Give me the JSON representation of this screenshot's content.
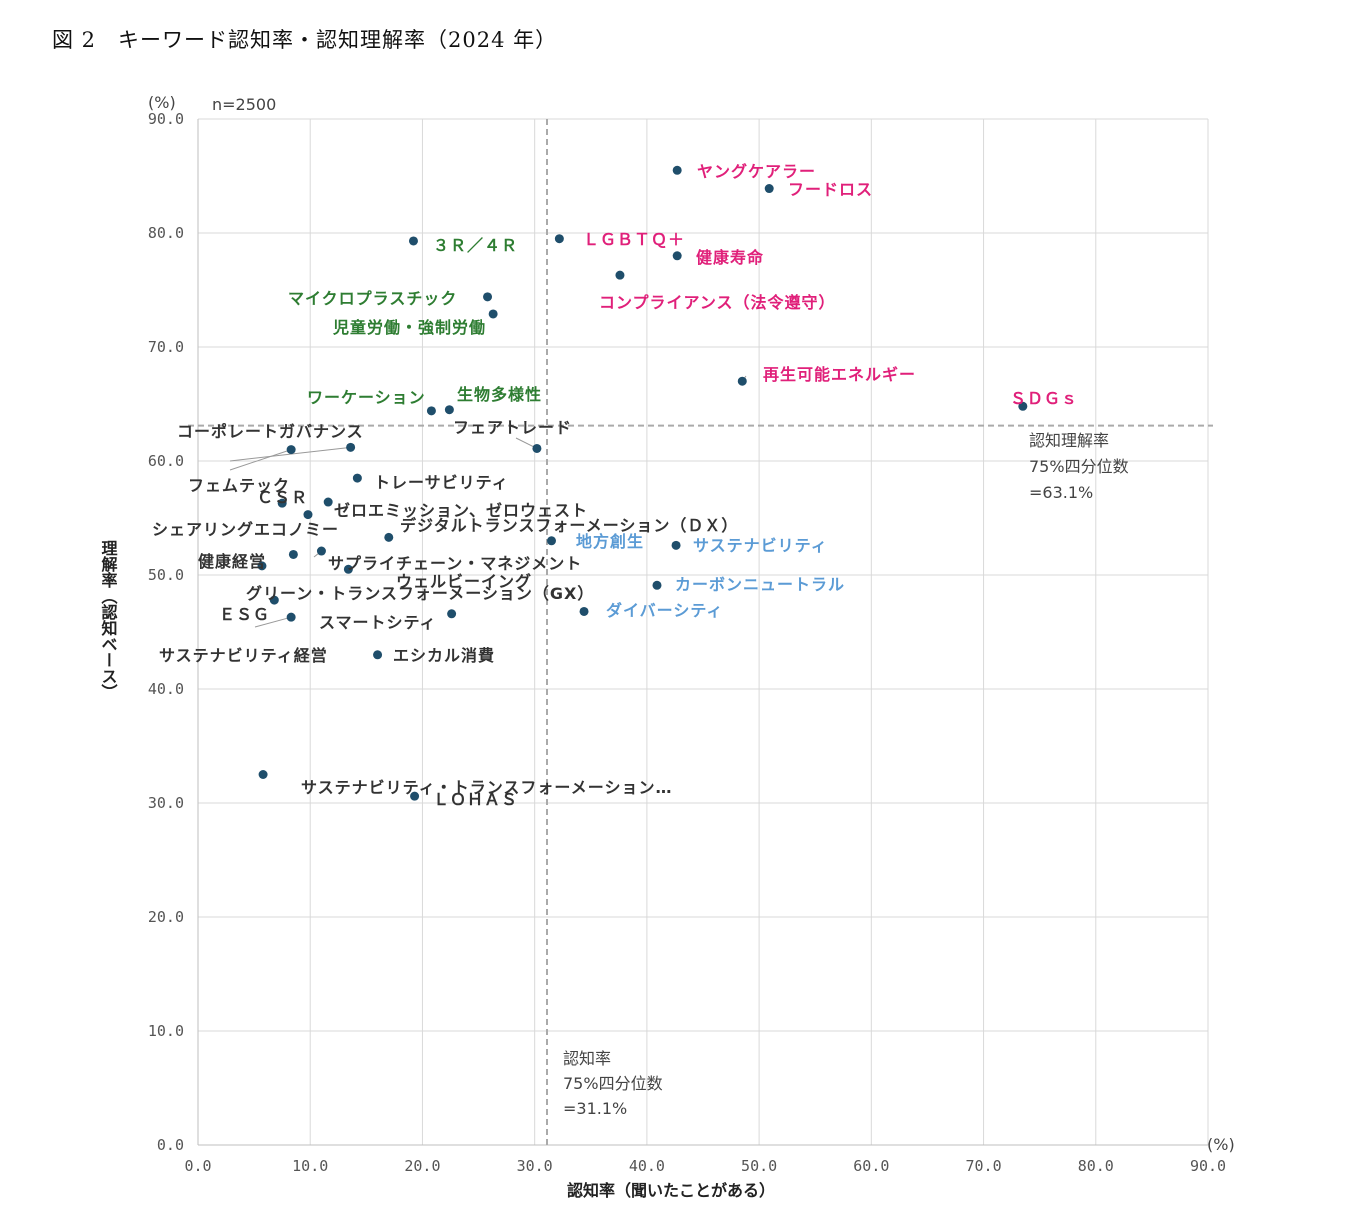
{
  "figure": {
    "title": "図 2　キーワード認知率・認知理解率（2024 年）"
  },
  "chart_data": {
    "type": "scatter",
    "sample_note": "n=2500",
    "xlabel": "認知率（聞いたことがある）",
    "ylabel": "理解率（認知ベース）",
    "x_unit": "(%)",
    "y_unit": "(%)",
    "xlim": [
      0,
      90
    ],
    "ylim": [
      0,
      90
    ],
    "x_ticks": [
      "0.0",
      "10.0",
      "20.0",
      "30.0",
      "40.0",
      "50.0",
      "60.0",
      "70.0",
      "80.0",
      "90.0"
    ],
    "y_ticks": [
      "0.0",
      "10.0",
      "20.0",
      "30.0",
      "40.0",
      "50.0",
      "60.0",
      "70.0",
      "80.0",
      "90.0"
    ],
    "grid": true,
    "colors": {
      "pink": "#e0207a",
      "green": "#2e7d32",
      "blue": "#5b9bd5",
      "dark": "#333333",
      "point": "#1f4e6b",
      "ref": "#aaaaaa"
    },
    "reference_lines": [
      {
        "axis": "x",
        "value": 31.1,
        "label": [
          "認知率",
          "75%四分位数",
          "=31.1%"
        ]
      },
      {
        "axis": "y",
        "value": 63.1,
        "label": [
          "認知理解率",
          "75%四分位数",
          "=63.1%"
        ]
      }
    ],
    "points": [
      {
        "label": "ヤングケアラー",
        "x": 42.7,
        "y": 85.5,
        "group": "pink"
      },
      {
        "label": "フードロス",
        "x": 50.9,
        "y": 83.9,
        "group": "pink"
      },
      {
        "label": "ＬＧＢＴＱ＋",
        "x": 32.2,
        "y": 79.5,
        "group": "pink"
      },
      {
        "label": "健康寿命",
        "x": 42.7,
        "y": 78.0,
        "group": "pink"
      },
      {
        "label": "コンプライアンス（法令遵守）",
        "x": 37.6,
        "y": 76.3,
        "group": "pink"
      },
      {
        "label": "再生可能エネルギー",
        "x": 48.5,
        "y": 67.0,
        "group": "pink"
      },
      {
        "label": "ＳＤＧｓ",
        "x": 73.5,
        "y": 64.8,
        "group": "pink"
      },
      {
        "label": "３Ｒ／４Ｒ",
        "x": 19.2,
        "y": 79.3,
        "group": "green"
      },
      {
        "label": "マイクロプラスチック",
        "x": 25.8,
        "y": 74.4,
        "group": "green"
      },
      {
        "label": "児童労働・強制労働",
        "x": 26.3,
        "y": 72.9,
        "group": "green"
      },
      {
        "label": "ワーケーション",
        "x": 20.8,
        "y": 64.4,
        "group": "green"
      },
      {
        "label": "生物多様性",
        "x": 22.4,
        "y": 64.5,
        "group": "green"
      },
      {
        "label": "地方創生",
        "x": 31.5,
        "y": 53.0,
        "group": "blue"
      },
      {
        "label": "サステナビリティ",
        "x": 42.6,
        "y": 52.6,
        "group": "blue"
      },
      {
        "label": "カーボンニュートラル",
        "x": 40.9,
        "y": 49.1,
        "group": "blue"
      },
      {
        "label": "ダイバーシティ",
        "x": 34.4,
        "y": 46.8,
        "group": "blue"
      },
      {
        "label": "コーポレートガバナンス",
        "x": 13.6,
        "y": 61.2,
        "group": "dark"
      },
      {
        "label": "フェアトレード",
        "x": 30.2,
        "y": 61.1,
        "group": "dark"
      },
      {
        "label": "フェムテック",
        "x": 8.3,
        "y": 61.0,
        "group": "dark"
      },
      {
        "label": "トレーサビリティ",
        "x": 14.2,
        "y": 58.5,
        "group": "dark"
      },
      {
        "label": "ＣＳＲ",
        "x": 7.5,
        "y": 56.3,
        "group": "dark"
      },
      {
        "label": "ゼロエミッション、ゼロウェスト",
        "x": 11.6,
        "y": 56.4,
        "group": "dark"
      },
      {
        "label": "シェアリングエコノミー",
        "x": 9.8,
        "y": 55.3,
        "group": "dark"
      },
      {
        "label": "デジタルトランスフォーメーション（ＤＸ）",
        "x": 17.0,
        "y": 53.3,
        "group": "dark"
      },
      {
        "label": "健康経営",
        "x": 5.7,
        "y": 50.8,
        "group": "dark"
      },
      {
        "label": "サプライチェーン・マネジメント",
        "x": 8.5,
        "y": 51.8,
        "group": "dark"
      },
      {
        "label": "ウェルビーイング",
        "x": 11.0,
        "y": 52.1,
        "group": "dark"
      },
      {
        "label": "グリーン・トランスフォーメーション（GX）",
        "x": 13.4,
        "y": 50.5,
        "group": "dark"
      },
      {
        "label": "ＥＳＧ",
        "x": 8.3,
        "y": 46.3,
        "group": "dark"
      },
      {
        "label": "スマートシティ",
        "x": 22.6,
        "y": 46.6,
        "group": "dark"
      },
      {
        "label": "サステナビリティ経営",
        "x": 6.8,
        "y": 47.8,
        "group": "dark"
      },
      {
        "label": "エシカル消費",
        "x": 16.0,
        "y": 43.0,
        "group": "dark"
      },
      {
        "label": "サステナビリティ・トランスフォーメーション…",
        "x": 5.8,
        "y": 32.5,
        "group": "dark"
      },
      {
        "label": "ＬＯＨＡＳ",
        "x": 19.3,
        "y": 30.6,
        "group": "dark"
      }
    ]
  }
}
